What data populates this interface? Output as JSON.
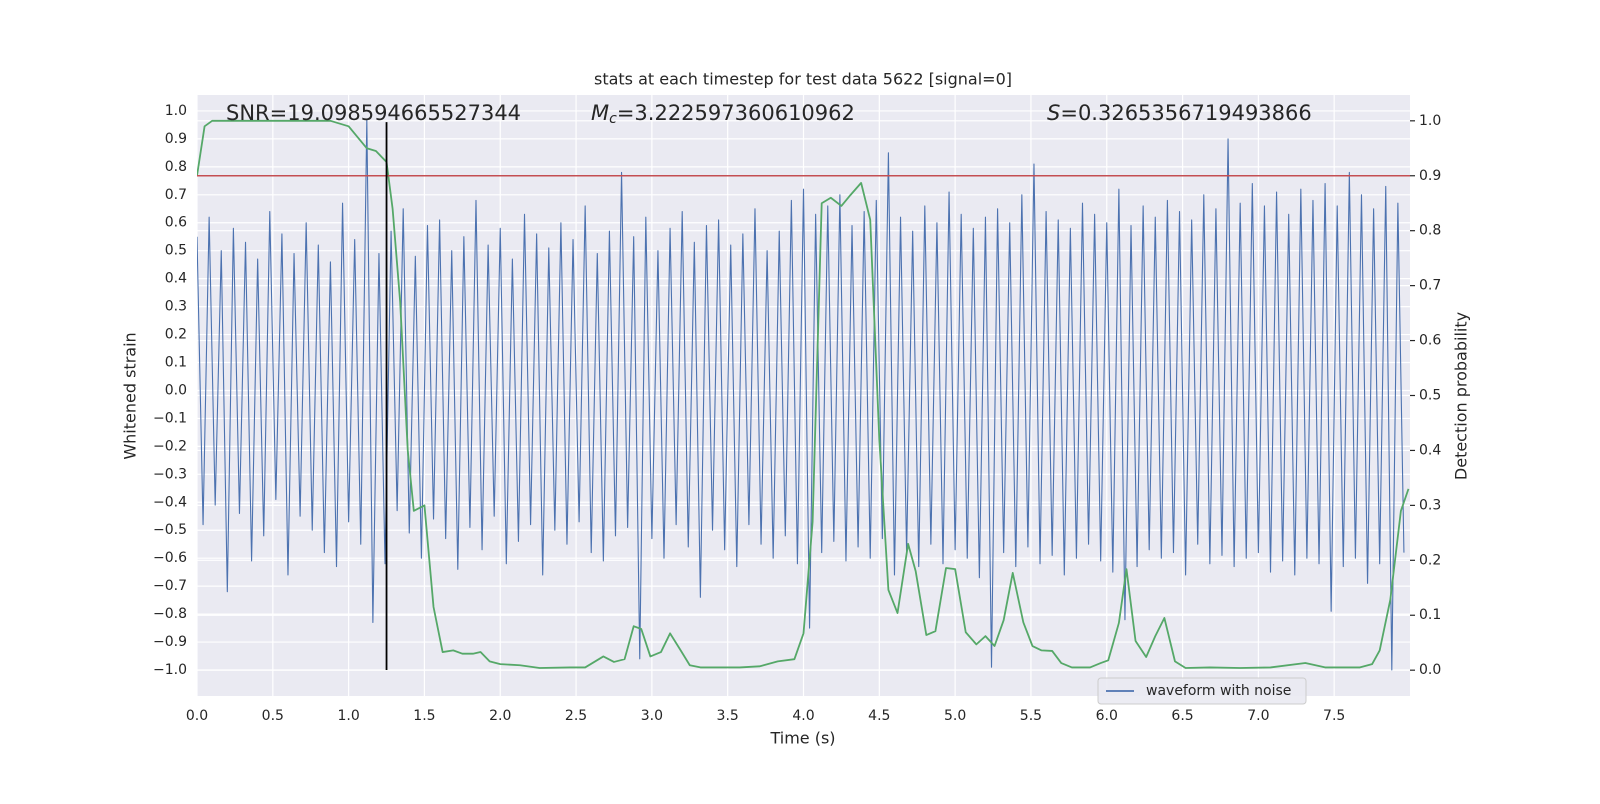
{
  "chart_data": {
    "type": "line",
    "title": "stats at each timestep for test data 5622 [signal=0]",
    "annotations": [
      {
        "text": "SNR=19.098594665527344"
      },
      {
        "symbol": "M",
        "subscript": "c",
        "text": "=3.222597360610962"
      },
      {
        "symbol": "S",
        "text": "=0.3265356719493866"
      }
    ],
    "xlabel": "Time (s)",
    "ylabel": "Whitened strain",
    "y2label": "Detection probability",
    "xlim": [
      0,
      8.0
    ],
    "ylim": [
      -1.093,
      1.057
    ],
    "y2lim": [
      -0.047,
      1.047
    ],
    "xticks": [
      {
        "value": 0,
        "label": "0.0"
      },
      0.5,
      {
        "value": 1,
        "label": "1.0"
      },
      1.5,
      {
        "value": 2,
        "label": "2.0"
      },
      2.5,
      {
        "value": 3,
        "label": "3.0"
      },
      3.5,
      {
        "value": 4,
        "label": "4.0"
      },
      4.5,
      {
        "value": 5,
        "label": "5.0"
      },
      5.5,
      {
        "value": 6,
        "label": "6.0"
      },
      6.5,
      {
        "value": 7,
        "label": "7.0"
      },
      7.5
    ],
    "yticks": [
      {
        "value": -1,
        "label": "−1.0"
      },
      {
        "value": -0.9,
        "label": "−0.9"
      },
      {
        "value": -0.8,
        "label": "−0.8"
      },
      {
        "value": -0.7,
        "label": "−0.7"
      },
      {
        "value": -0.6,
        "label": "−0.6"
      },
      {
        "value": -0.5,
        "label": "−0.5"
      },
      {
        "value": -0.4,
        "label": "−0.4"
      },
      {
        "value": -0.3,
        "label": "−0.3"
      },
      {
        "value": -0.2,
        "label": "−0.2"
      },
      {
        "value": -0.1,
        "label": "−0.1"
      },
      {
        "value": 0,
        "label": "0.0"
      },
      0.1,
      0.2,
      0.3,
      0.4,
      0.5,
      0.6,
      0.7,
      0.8,
      0.9,
      {
        "value": 1,
        "label": "1.0"
      }
    ],
    "y2ticks": [
      {
        "value": 0,
        "label": "0.0"
      },
      0.1,
      0.2,
      0.3,
      0.4,
      0.5,
      0.6,
      0.7,
      0.8,
      0.9,
      {
        "value": 1,
        "label": "1.0"
      }
    ],
    "grid": true,
    "legend": "lower right",
    "series": [
      {
        "name": "waveform with noise",
        "color": "#4c72b0",
        "x": [
          0,
          0.04,
          0.08,
          0.12,
          0.16,
          0.2,
          0.24,
          0.28,
          0.32,
          0.36,
          0.4,
          0.44,
          0.48,
          0.52,
          0.56,
          0.6,
          0.64,
          0.68,
          0.72,
          0.76,
          0.8,
          0.84,
          0.88,
          0.92,
          0.96,
          1,
          1.04,
          1.08,
          1.12,
          1.16,
          1.2,
          1.24,
          1.28,
          1.32,
          1.36,
          1.4,
          1.44,
          1.48,
          1.52,
          1.56,
          1.6,
          1.64,
          1.68,
          1.72,
          1.76,
          1.8,
          1.84,
          1.88,
          1.92,
          1.96,
          2,
          2.04,
          2.08,
          2.12,
          2.16,
          2.2,
          2.24,
          2.28,
          2.32,
          2.36,
          2.4,
          2.44,
          2.48,
          2.52,
          2.56,
          2.6,
          2.64,
          2.68,
          2.72,
          2.76,
          2.8,
          2.84,
          2.88,
          2.92,
          2.96,
          3,
          3.04,
          3.08,
          3.12,
          3.16,
          3.2,
          3.24,
          3.28,
          3.32,
          3.36,
          3.4,
          3.44,
          3.48,
          3.52,
          3.56,
          3.6,
          3.64,
          3.68,
          3.72,
          3.76,
          3.8,
          3.84,
          3.88,
          3.92,
          3.96,
          4,
          4.04,
          4.08,
          4.12,
          4.16,
          4.2,
          4.24,
          4.28,
          4.32,
          4.36,
          4.4,
          4.44,
          4.48,
          4.52,
          4.56,
          4.6,
          4.64,
          4.68,
          4.72,
          4.76,
          4.8,
          4.84,
          4.88,
          4.92,
          4.96,
          5,
          5.04,
          5.08,
          5.12,
          5.16,
          5.2,
          5.24,
          5.28,
          5.32,
          5.36,
          5.4,
          5.44,
          5.48,
          5.52,
          5.56,
          5.6,
          5.64,
          5.68,
          5.72,
          5.76,
          5.8,
          5.84,
          5.88,
          5.92,
          5.96,
          6,
          6.04,
          6.08,
          6.12,
          6.16,
          6.2,
          6.24,
          6.28,
          6.32,
          6.36,
          6.4,
          6.44,
          6.48,
          6.52,
          6.56,
          6.6,
          6.64,
          6.68,
          6.72,
          6.76,
          6.8,
          6.84,
          6.88,
          6.92,
          6.96,
          7,
          7.04,
          7.08,
          7.12,
          7.16,
          7.2,
          7.24,
          7.28,
          7.32,
          7.36,
          7.4,
          7.44,
          7.48,
          7.52,
          7.56,
          7.6,
          7.64,
          7.68,
          7.72,
          7.76,
          7.8,
          7.84,
          7.88,
          7.92,
          7.96
        ],
        "values": [
          0.55,
          -0.48,
          0.62,
          -0.41,
          0.5,
          -0.72,
          0.58,
          -0.44,
          0.53,
          -0.61,
          0.47,
          -0.52,
          0.64,
          -0.39,
          0.56,
          -0.66,
          0.49,
          -0.45,
          0.6,
          -0.5,
          0.52,
          -0.58,
          0.46,
          -0.63,
          0.67,
          -0.47,
          0.54,
          -0.55,
          0.97,
          -0.83,
          0.49,
          -0.62,
          0.57,
          -0.43,
          0.65,
          -0.51,
          0.48,
          -0.6,
          0.59,
          -0.46,
          0.61,
          -0.53,
          0.5,
          -0.64,
          0.55,
          -0.49,
          0.68,
          -0.57,
          0.52,
          -0.45,
          0.58,
          -0.62,
          0.47,
          -0.54,
          0.63,
          -0.48,
          0.56,
          -0.66,
          0.51,
          -0.5,
          0.6,
          -0.55,
          0.54,
          -0.47,
          0.66,
          -0.58,
          0.49,
          -0.61,
          0.57,
          -0.52,
          0.78,
          -0.49,
          0.55,
          -0.96,
          0.62,
          -0.53,
          0.5,
          -0.6,
          0.58,
          -0.48,
          0.64,
          -0.56,
          0.53,
          -0.74,
          0.59,
          -0.5,
          0.61,
          -0.57,
          0.52,
          -0.63,
          0.56,
          -0.48,
          0.65,
          -0.55,
          0.5,
          -0.6,
          0.57,
          -0.52,
          0.68,
          -0.62,
          0.72,
          -0.85,
          0.63,
          -0.58,
          0.66,
          -0.54,
          0.7,
          -0.61,
          0.59,
          -0.56,
          0.64,
          -0.6,
          0.68,
          -0.53,
          0.85,
          -0.66,
          0.62,
          -0.58,
          0.57,
          -0.63,
          0.66,
          -0.55,
          0.6,
          -0.62,
          0.71,
          -0.57,
          0.63,
          -0.6,
          0.58,
          -0.67,
          0.62,
          -0.99,
          0.65,
          -0.58,
          0.6,
          -0.63,
          0.7,
          -0.56,
          0.81,
          -0.62,
          0.64,
          -0.59,
          0.61,
          -0.66,
          0.58,
          -0.6,
          0.67,
          -0.55,
          0.63,
          -0.61,
          0.6,
          -0.65,
          0.72,
          -0.82,
          0.59,
          -0.63,
          0.66,
          -0.57,
          0.62,
          -0.6,
          0.68,
          -0.58,
          0.64,
          -0.66,
          0.61,
          -0.55,
          0.7,
          -0.62,
          0.65,
          -0.59,
          0.9,
          -0.63,
          0.67,
          -0.6,
          0.74,
          -0.58,
          0.66,
          -0.65,
          0.71,
          -0.61,
          0.63,
          -0.66,
          0.72,
          -0.6,
          0.68,
          -0.62,
          0.74,
          -0.79,
          0.66,
          -0.63,
          0.78,
          -0.6,
          0.7,
          -0.69,
          0.65,
          -0.62,
          0.73,
          -1.0,
          0.67,
          -0.58
        ]
      },
      {
        "color": "#55a868",
        "axis": "y2",
        "x": [
          0,
          0.05,
          0.1,
          0.68,
          0.88,
          1.0,
          1.06,
          1.12,
          1.18,
          1.25,
          1.29,
          1.34,
          1.39,
          1.43,
          1.5,
          1.56,
          1.62,
          1.69,
          1.75,
          1.82,
          1.87,
          1.93,
          2.0,
          2.13,
          2.26,
          2.46,
          2.56,
          2.68,
          2.75,
          2.82,
          2.88,
          2.93,
          2.99,
          3.06,
          3.12,
          3.19,
          3.25,
          3.32,
          3.58,
          3.71,
          3.83,
          3.94,
          4.0,
          4.06,
          4.12,
          4.18,
          4.25,
          4.31,
          4.38,
          4.44,
          4.5,
          4.56,
          4.62,
          4.69,
          4.74,
          4.81,
          4.87,
          4.94,
          5.0,
          5.07,
          5.14,
          5.2,
          5.26,
          5.32,
          5.38,
          5.45,
          5.51,
          5.57,
          5.64,
          5.7,
          5.77,
          5.89,
          5.96,
          6.01,
          6.08,
          6.13,
          6.19,
          6.26,
          6.32,
          6.38,
          6.45,
          6.52,
          6.68,
          6.88,
          7.08,
          7.31,
          7.44,
          7.67,
          7.75,
          7.8,
          7.87,
          7.94,
          7.99
        ],
        "values": [
          0.9,
          0.99,
          1.0,
          1.0,
          1.0,
          0.99,
          0.97,
          0.95,
          0.945,
          0.925,
          0.84,
          0.67,
          0.4,
          0.29,
          0.3,
          0.115,
          0.033,
          0.036,
          0.03,
          0.03,
          0.033,
          0.016,
          0.011,
          0.009,
          0.004,
          0.005,
          0.005,
          0.025,
          0.015,
          0.02,
          0.08,
          0.075,
          0.025,
          0.033,
          0.067,
          0.036,
          0.009,
          0.005,
          0.005,
          0.007,
          0.016,
          0.02,
          0.067,
          0.27,
          0.85,
          0.86,
          0.845,
          0.865,
          0.887,
          0.82,
          0.42,
          0.146,
          0.104,
          0.23,
          0.18,
          0.064,
          0.071,
          0.186,
          0.184,
          0.069,
          0.047,
          0.062,
          0.044,
          0.091,
          0.177,
          0.087,
          0.044,
          0.036,
          0.035,
          0.013,
          0.005,
          0.005,
          0.013,
          0.018,
          0.086,
          0.184,
          0.053,
          0.024,
          0.062,
          0.095,
          0.016,
          0.004,
          0.005,
          0.004,
          0.005,
          0.013,
          0.005,
          0.005,
          0.011,
          0.036,
          0.128,
          0.29,
          0.33
        ]
      }
    ],
    "hlines": [
      {
        "y": 0.9,
        "axis": "y2",
        "color": "#c44e52"
      }
    ],
    "vlines": [
      {
        "x": 1.25,
        "ymin": -1.0,
        "ymax": 0.96,
        "color": "#000000"
      }
    ]
  }
}
